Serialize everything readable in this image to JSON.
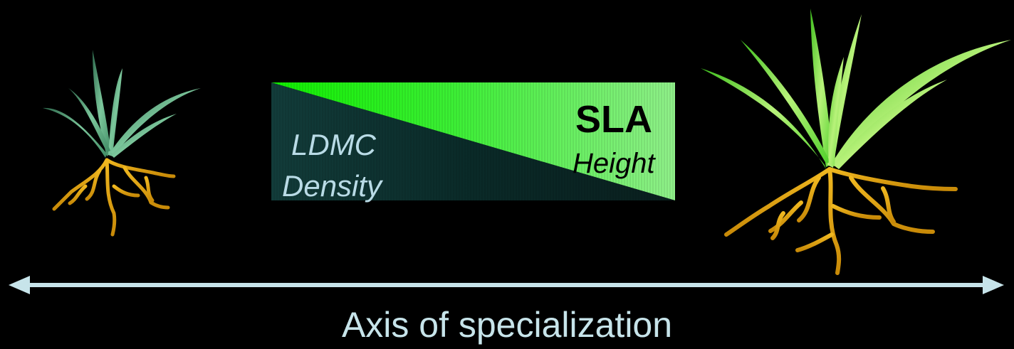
{
  "trait_box": {
    "high_labels": {
      "primary": "SLA",
      "secondary": "Height"
    },
    "low_labels": {
      "primary": "LDMC",
      "secondary": "Density"
    },
    "colors": {
      "bright_green": "#2cf020",
      "pale_green": "#8af080",
      "dark_teal": "#0b2a2a"
    }
  },
  "axis": {
    "label": "Axis of specialization",
    "color": "#c7e4ea",
    "direction": "bidirectional"
  },
  "plants": {
    "left": {
      "icon": "small-plant-icon",
      "leaf_color": "#4f9a73",
      "root_color": "#d9a010"
    },
    "right": {
      "icon": "large-plant-icon",
      "leaf_color": "#6fe03c",
      "root_color": "#e0a812"
    }
  },
  "background": "#000000"
}
